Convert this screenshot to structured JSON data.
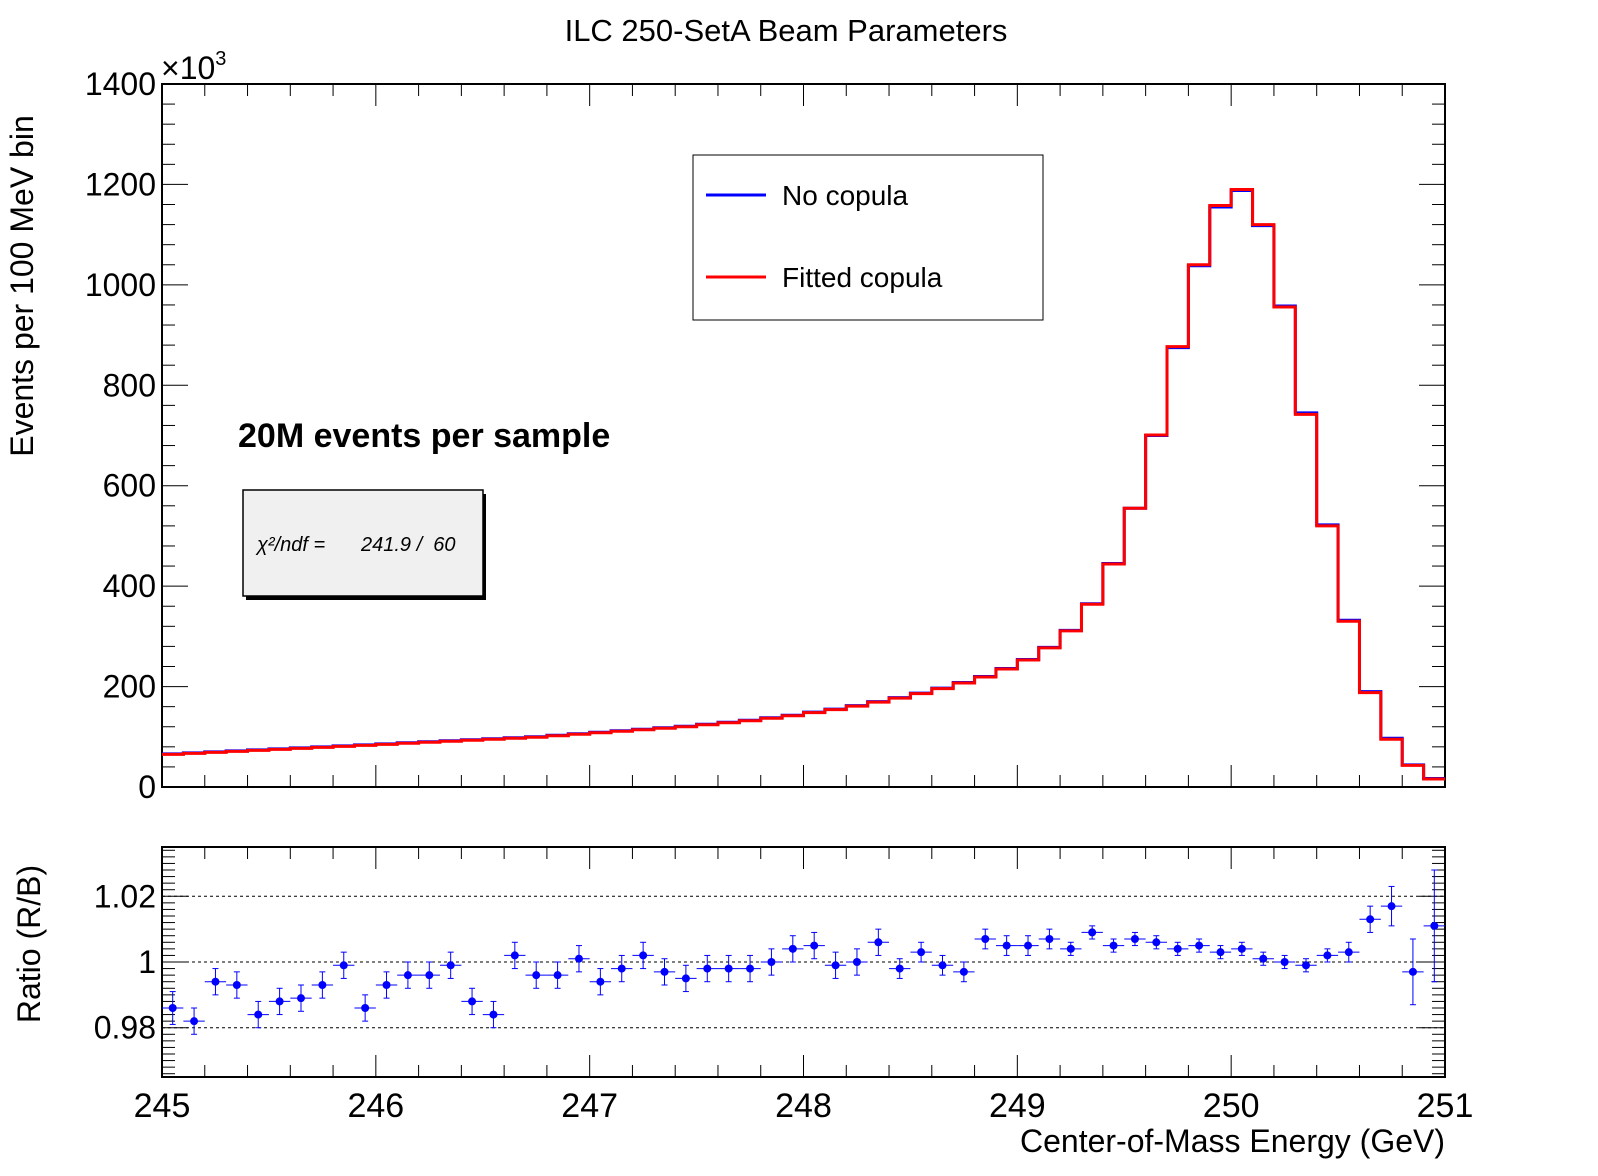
{
  "title": "ILC 250-SetA Beam Parameters",
  "colors": {
    "series_a": "#0000ff",
    "series_b": "#ff0000",
    "ratio_points": "#0000ff",
    "stat_box_fill": "#f0f0f0"
  },
  "annotation": "20M events per sample",
  "stats": {
    "label": "χ²/ndf =",
    "value": "241.9 /  60"
  },
  "chart_data": [
    {
      "type": "line",
      "subtype": "step-histogram",
      "title": "ILC 250-SetA Beam Parameters",
      "ylabel": "Events per 100 MeV bin",
      "y_multiplier": "×10³",
      "xlim": [
        245,
        251
      ],
      "ylim": [
        0,
        1400
      ],
      "yticks": [
        0,
        200,
        400,
        600,
        800,
        1000,
        1200,
        1400
      ],
      "ytick_labels": [
        "0",
        "200",
        "400",
        "600",
        "800",
        "1000",
        "1200",
        "1400"
      ],
      "bin_width": 0.1,
      "x": [
        245.0,
        245.1,
        245.2,
        245.3,
        245.4,
        245.5,
        245.6,
        245.7,
        245.8,
        245.9,
        246.0,
        246.1,
        246.2,
        246.3,
        246.4,
        246.5,
        246.6,
        246.7,
        246.8,
        246.9,
        247.0,
        247.1,
        247.2,
        247.3,
        247.4,
        247.5,
        247.6,
        247.7,
        247.8,
        247.9,
        248.0,
        248.1,
        248.2,
        248.3,
        248.4,
        248.5,
        248.6,
        248.7,
        248.8,
        248.9,
        249.0,
        249.1,
        249.2,
        249.3,
        249.4,
        249.5,
        249.6,
        249.7,
        249.8,
        249.9,
        250.0,
        250.1,
        250.2,
        250.3,
        250.4,
        250.5,
        250.6,
        250.7,
        250.8,
        250.9
      ],
      "legend": [
        "No copula",
        "Fitted copula"
      ],
      "series": [
        {
          "name": "No copula",
          "color": "#0000ff",
          "values": [
            66,
            68,
            70,
            72,
            74,
            76,
            78,
            80,
            82,
            84,
            86,
            88,
            90,
            92,
            94,
            96,
            98,
            100,
            103,
            106,
            109,
            112,
            115,
            118,
            121,
            125,
            129,
            133,
            138,
            143,
            149,
            155,
            162,
            170,
            178,
            187,
            197,
            208,
            220,
            236,
            254,
            278,
            312,
            365,
            445,
            555,
            700,
            875,
            1038,
            1155,
            1188,
            1118,
            958,
            745,
            522,
            332,
            190,
            97,
            44,
            17
          ]
        },
        {
          "name": "Fitted copula",
          "color": "#ff0000",
          "values": [
            65,
            67,
            69,
            71,
            73,
            75,
            77,
            79,
            81,
            83,
            85,
            87,
            89,
            91,
            93,
            95,
            97,
            99,
            102,
            105,
            108,
            111,
            114,
            117,
            120,
            124,
            128,
            132,
            137,
            142,
            148,
            154,
            161,
            169,
            177,
            186,
            196,
            207,
            219,
            235,
            253,
            277,
            311,
            364,
            444,
            555,
            701,
            877,
            1040,
            1158,
            1190,
            1120,
            956,
            742,
            520,
            330,
            188,
            95,
            43,
            16
          ]
        }
      ]
    },
    {
      "type": "scatter",
      "subtype": "ratio-with-errorbars",
      "xlabel": "Center-of-Mass Energy (GeV)",
      "ylabel": "Ratio (R/B)",
      "xlim": [
        245,
        251
      ],
      "ylim": [
        0.965,
        1.035
      ],
      "xticks": [
        245,
        246,
        247,
        248,
        249,
        250,
        251
      ],
      "xtick_labels": [
        "245",
        "246",
        "247",
        "248",
        "249",
        "250",
        "251"
      ],
      "yticks": [
        0.98,
        1.0,
        1.02
      ],
      "ytick_labels": [
        "0.98",
        "1",
        "1.02"
      ],
      "reference_lines": [
        0.98,
        1.0,
        1.02
      ],
      "x": [
        245.05,
        245.15,
        245.25,
        245.35,
        245.45,
        245.55,
        245.65,
        245.75,
        245.85,
        245.95,
        246.05,
        246.15,
        246.25,
        246.35,
        246.45,
        246.55,
        246.65,
        246.75,
        246.85,
        246.95,
        247.05,
        247.15,
        247.25,
        247.35,
        247.45,
        247.55,
        247.65,
        247.75,
        247.85,
        247.95,
        248.05,
        248.15,
        248.25,
        248.35,
        248.45,
        248.55,
        248.65,
        248.75,
        248.85,
        248.95,
        249.05,
        249.15,
        249.25,
        249.35,
        249.45,
        249.55,
        249.65,
        249.75,
        249.85,
        249.95,
        250.05,
        250.15,
        250.25,
        250.35,
        250.45,
        250.55,
        250.65,
        250.75,
        250.85,
        250.95
      ],
      "y": [
        0.986,
        0.982,
        0.994,
        0.993,
        0.984,
        0.988,
        0.989,
        0.993,
        0.999,
        0.986,
        0.993,
        0.996,
        0.996,
        0.999,
        0.988,
        0.984,
        1.002,
        0.996,
        0.996,
        1.001,
        0.994,
        0.998,
        1.002,
        0.997,
        0.995,
        0.998,
        0.998,
        0.998,
        1.0,
        1.004,
        1.005,
        0.999,
        1.0,
        1.006,
        0.998,
        1.003,
        0.999,
        0.997,
        1.007,
        1.005,
        1.005,
        1.007,
        1.004,
        1.009,
        1.005,
        1.007,
        1.006,
        1.004,
        1.005,
        1.003,
        1.004,
        1.001,
        1.0,
        0.999,
        1.002,
        1.003,
        1.013,
        1.017,
        0.997,
        1.011
      ],
      "y_err": [
        0.005,
        0.004,
        0.004,
        0.004,
        0.004,
        0.004,
        0.004,
        0.004,
        0.004,
        0.004,
        0.004,
        0.004,
        0.004,
        0.004,
        0.004,
        0.004,
        0.004,
        0.004,
        0.004,
        0.004,
        0.004,
        0.004,
        0.004,
        0.004,
        0.004,
        0.004,
        0.004,
        0.004,
        0.004,
        0.004,
        0.004,
        0.004,
        0.004,
        0.004,
        0.003,
        0.003,
        0.003,
        0.003,
        0.003,
        0.003,
        0.003,
        0.003,
        0.002,
        0.002,
        0.002,
        0.002,
        0.002,
        0.002,
        0.002,
        0.002,
        0.002,
        0.002,
        0.002,
        0.002,
        0.002,
        0.003,
        0.004,
        0.006,
        0.01,
        0.017
      ]
    }
  ]
}
